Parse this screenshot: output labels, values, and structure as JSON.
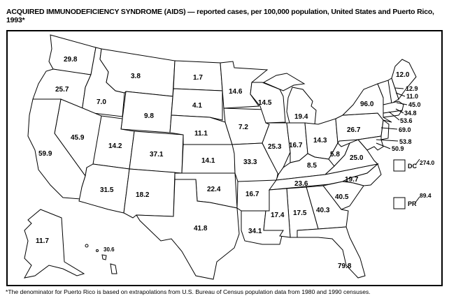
{
  "title": "ACQUIRED IMMUNODEFICIENCY SYNDROME (AIDS) — reported cases, per 100,000 population, United States and Puerto Rico, 1993*",
  "footnote": "*The denominator for Puerto Rico is based on extrapolations from U.S. Bureau of Census population data from 1980 and 1990 censuses.",
  "states": {
    "WA": "29.8",
    "OR": "25.7",
    "ID": "7.0",
    "MT": "3.8",
    "WY": "9.8",
    "NV": "45.9",
    "CA": "59.9",
    "UT": "14.2",
    "CO": "37.1",
    "AZ": "31.5",
    "NM": "18.2",
    "ND": "1.7",
    "SD": "4.1",
    "NE": "11.1",
    "KS": "14.1",
    "OK": "22.4",
    "TX": "41.8",
    "MN": "14.6",
    "WI": "14.5",
    "MI": "19.4",
    "IA": "7.2",
    "IL": "25.3",
    "IN": "16.7",
    "OH": "14.3",
    "MO": "33.3",
    "KY": "8.5",
    "WV": "5.8",
    "VA": "25.0",
    "TN": "23.6",
    "NC": "19.7",
    "SC": "40.5",
    "GA": "40.3",
    "AL": "17.5",
    "MS": "17.4",
    "AR": "16.7",
    "LA": "34.1",
    "FL": "79.8",
    "AK": "11.7",
    "HI": "30.6",
    "NY": "96.0",
    "PA": "26.7",
    "ME": "12.0",
    "NH": "12.9",
    "VT": "11.0",
    "MA": "45.0",
    "RI": "34.8",
    "CT": "53.6",
    "NJ": "69.0",
    "DE": "53.8",
    "MD": "50.9"
  },
  "insets": {
    "dc_label": "DC",
    "dc_value": "274.0",
    "pr_label": "PR",
    "pr_value": "89.4"
  }
}
